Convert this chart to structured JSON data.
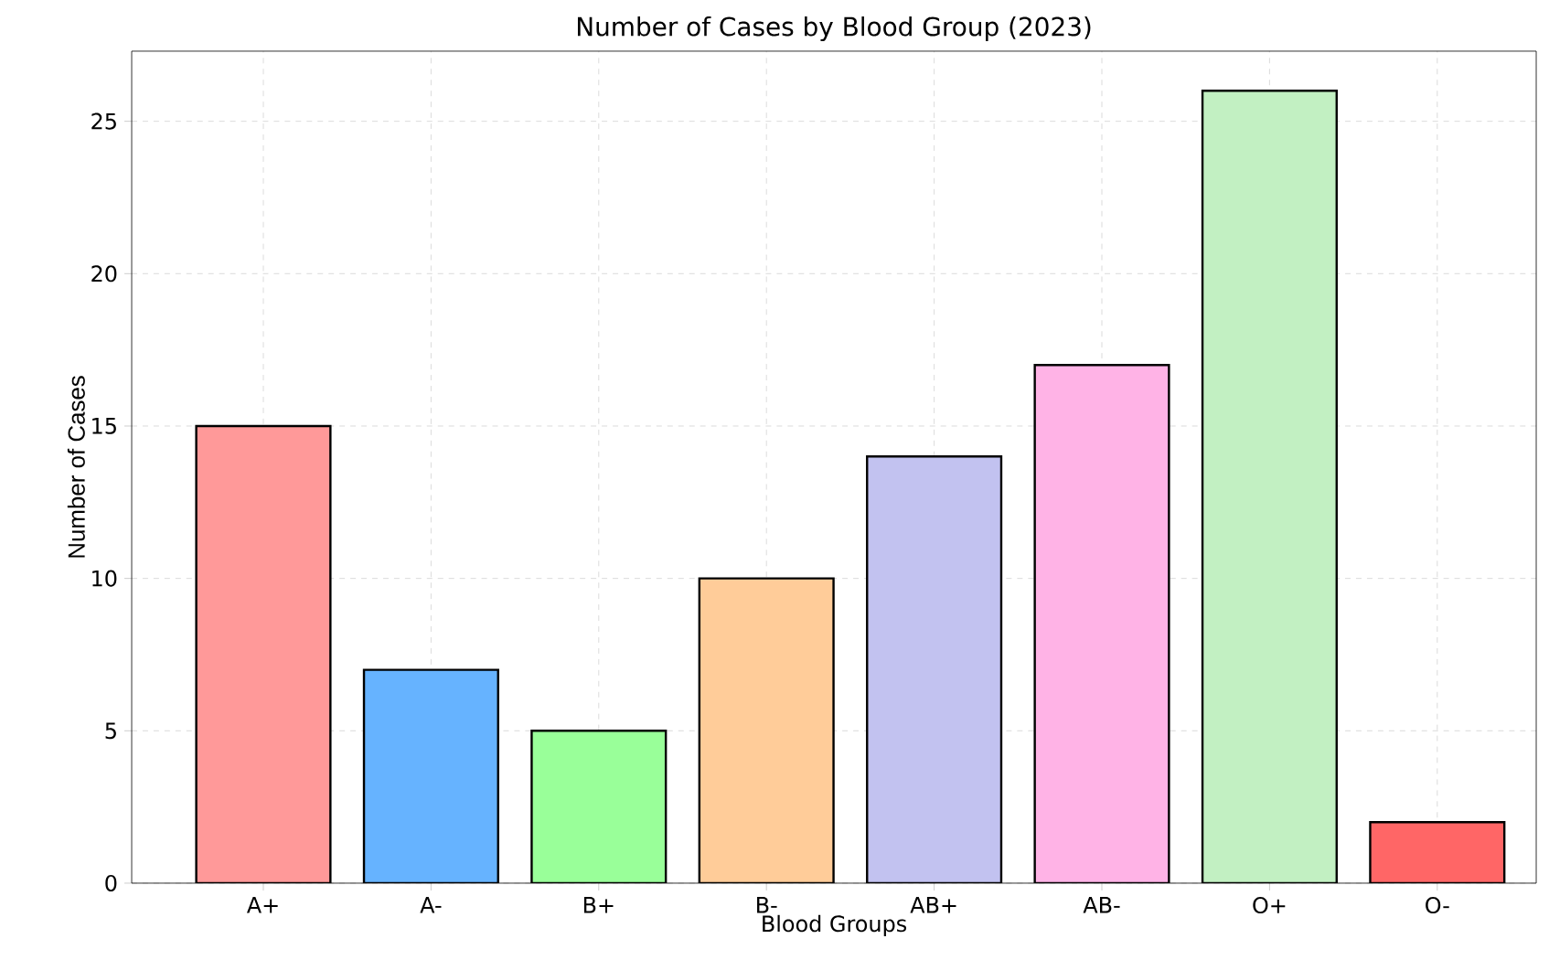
{
  "chart_data": {
    "type": "bar",
    "title": "Number of Cases by Blood Group (2023)",
    "xlabel": "Blood Groups",
    "ylabel": "Number of Cases",
    "categories": [
      "A+",
      "A-",
      "B+",
      "B-",
      "AB+",
      "AB-",
      "O+",
      "O-"
    ],
    "values": [
      15,
      7,
      5,
      10,
      14,
      17,
      26,
      2
    ],
    "colors": [
      "#ff9999",
      "#66b3ff",
      "#99ff99",
      "#ffcc99",
      "#c2c2f0",
      "#ffb3e6",
      "#c2f0c2",
      "#ff6666"
    ],
    "ylim": [
      0,
      27.3
    ],
    "yticks": [
      0,
      5,
      10,
      15,
      20,
      25
    ],
    "grid": true
  }
}
